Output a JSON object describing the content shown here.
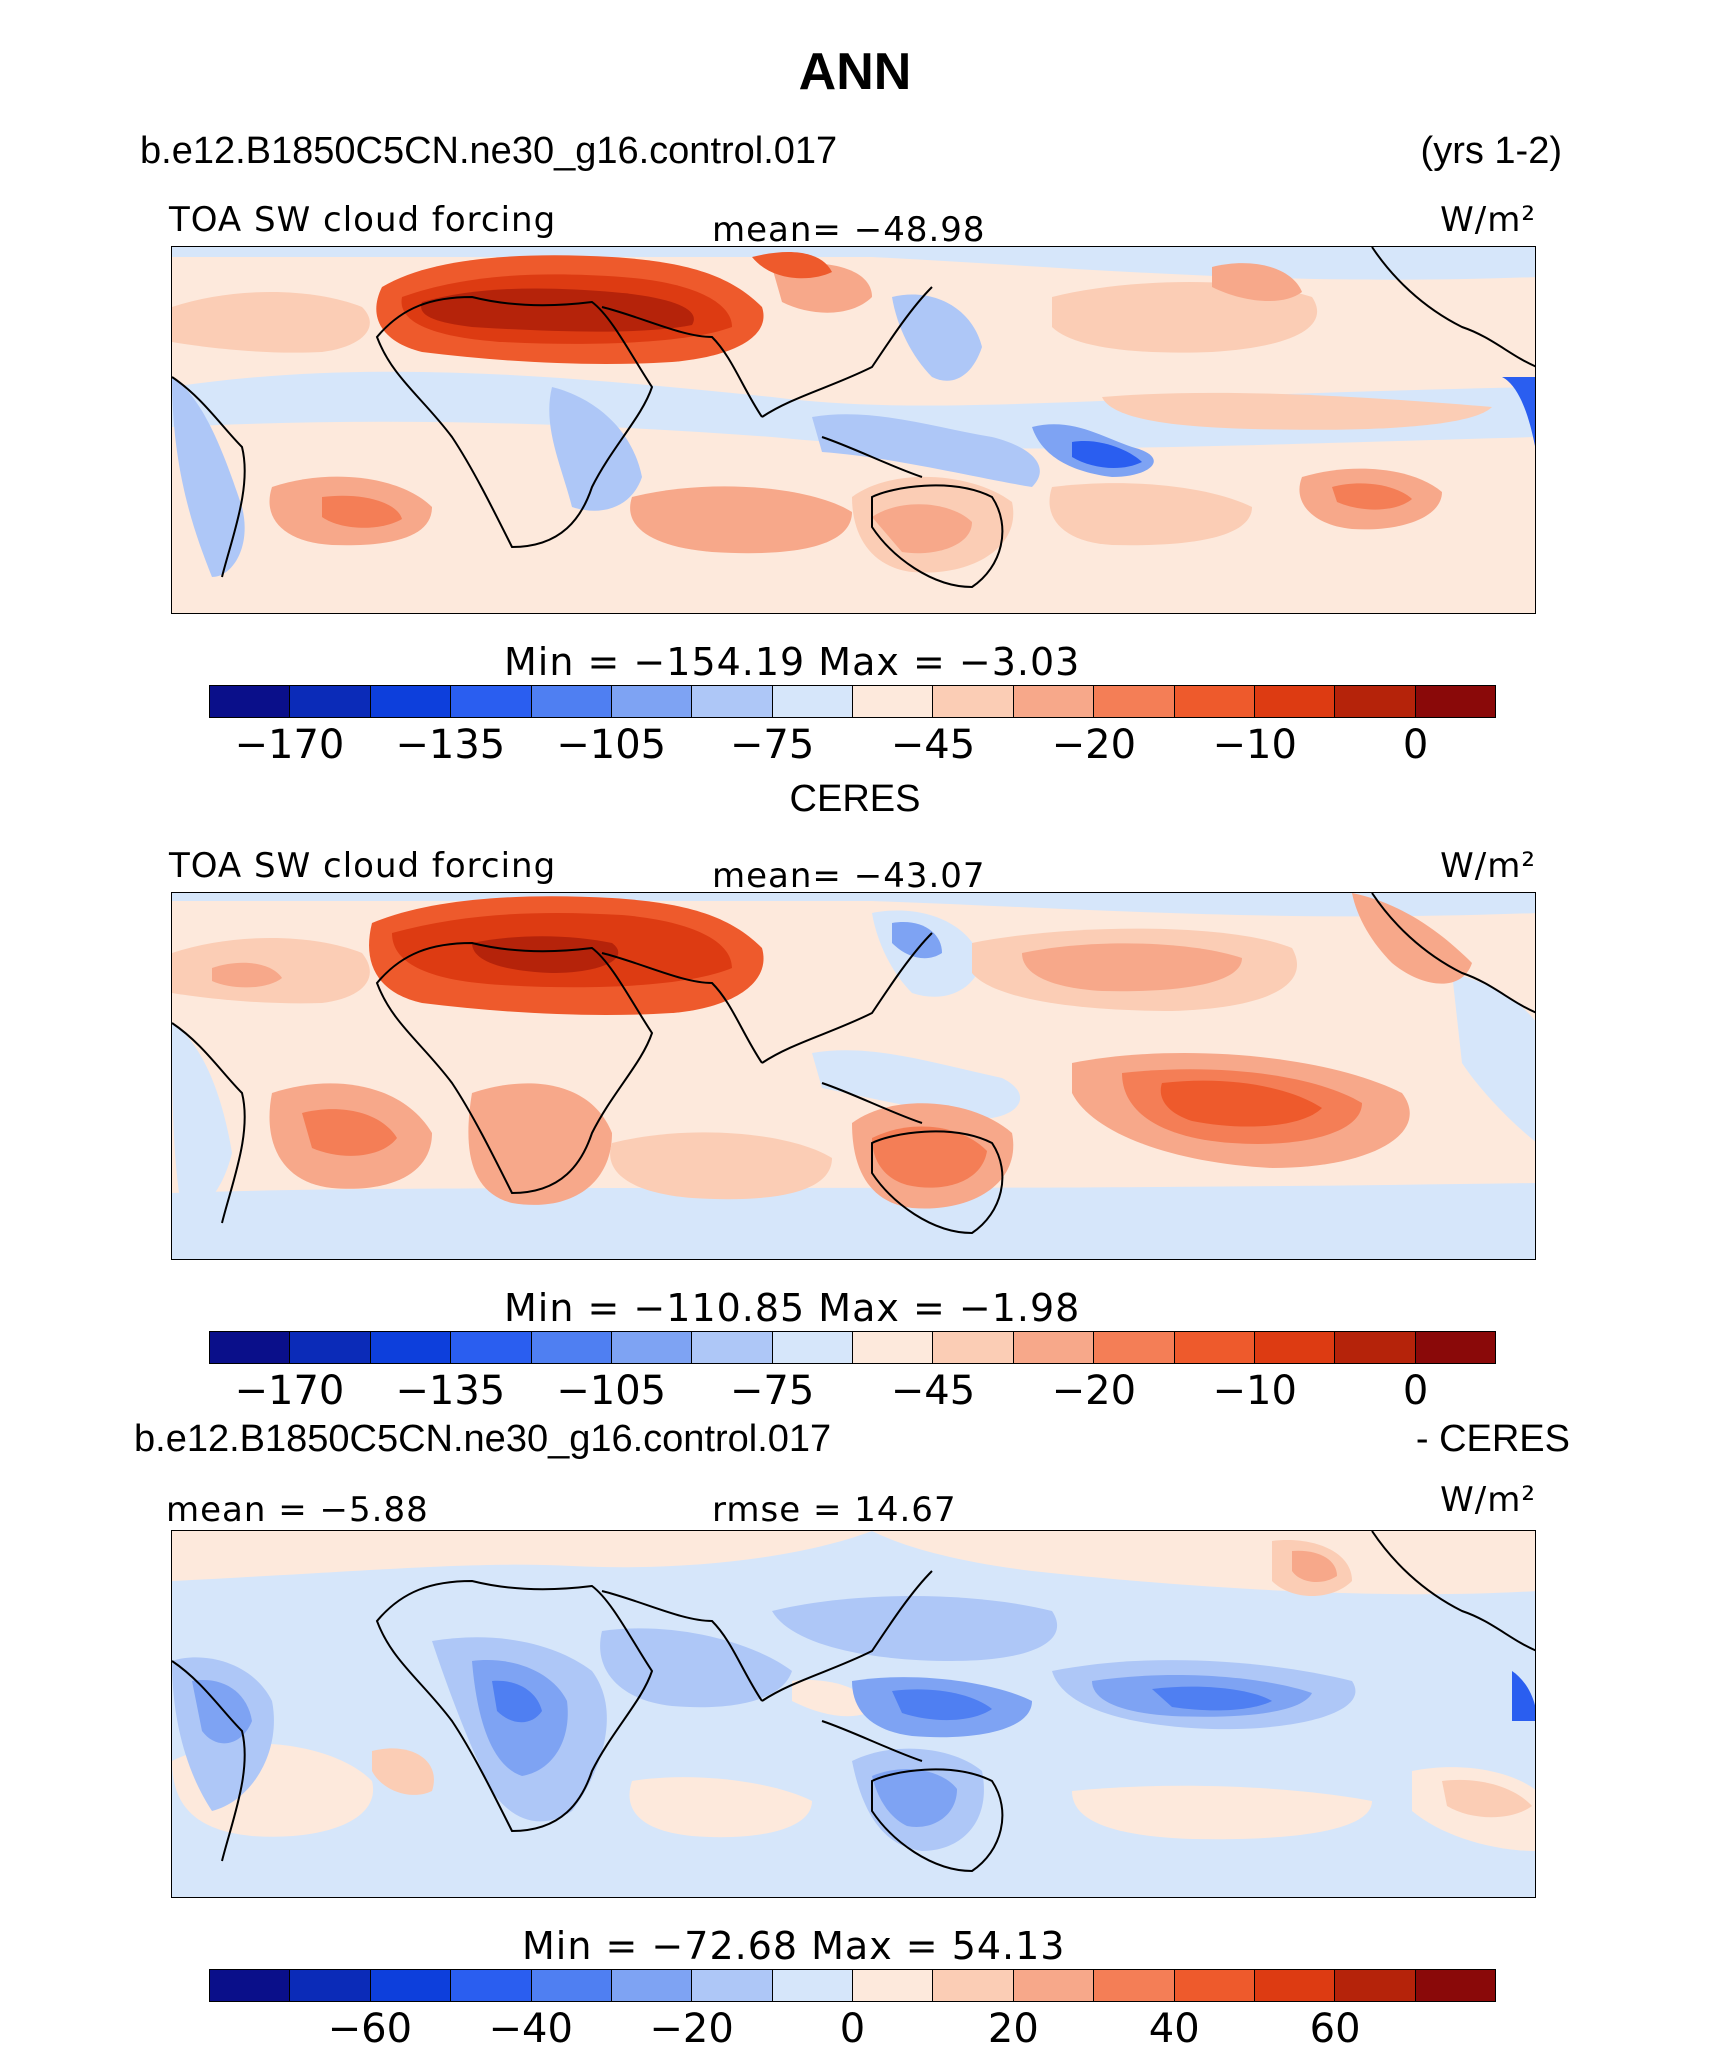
{
  "title": "ANN",
  "panels": [
    {
      "case": "b.e12.B1850C5CN.ne30_g16.control.017",
      "years": "(yrs 1-2)",
      "variable": "TOA SW cloud forcing",
      "stat_left": "",
      "stat_mid": "mean=  −48.98",
      "units": "W/m²",
      "minmax": "Min  =  −154.19  Max  =   −3.03",
      "palette": "abs",
      "ticks": [
        {
          "text": "−170",
          "at": 1
        },
        {
          "text": "−135",
          "at": 3
        },
        {
          "text": "−105",
          "at": 5
        },
        {
          "text": "−75",
          "at": 7
        },
        {
          "text": "−45",
          "at": 9
        },
        {
          "text": "−20",
          "at": 11
        },
        {
          "text": "−10",
          "at": 13
        },
        {
          "text": "0",
          "at": 15
        }
      ]
    },
    {
      "case": "CERES",
      "years": "",
      "variable": "TOA SW cloud forcing",
      "stat_left": "",
      "stat_mid": "mean=  −43.07",
      "units": "W/m²",
      "minmax": "Min  =  −110.85  Max  =   −1.98",
      "palette": "abs",
      "ticks": [
        {
          "text": "−170",
          "at": 1
        },
        {
          "text": "−135",
          "at": 3
        },
        {
          "text": "−105",
          "at": 5
        },
        {
          "text": "−75",
          "at": 7
        },
        {
          "text": "−45",
          "at": 9
        },
        {
          "text": "−20",
          "at": 11
        },
        {
          "text": "−10",
          "at": 13
        },
        {
          "text": "0",
          "at": 15
        }
      ]
    },
    {
      "case": "b.e12.B1850C5CN.ne30_g16.control.017",
      "years": "- CERES",
      "variable": "",
      "stat_left": "mean =   −5.88",
      "stat_mid": "rmse  =   14.67",
      "units": "W/m²",
      "minmax": "Min  =  −72.68  Max  =   54.13",
      "palette": "diff",
      "ticks": [
        {
          "text": "−60",
          "at": 2
        },
        {
          "text": "−40",
          "at": 4
        },
        {
          "text": "−20",
          "at": 6
        },
        {
          "text": "0",
          "at": 8
        },
        {
          "text": "20",
          "at": 10
        },
        {
          "text": "40",
          "at": 12
        },
        {
          "text": "60",
          "at": 14
        }
      ]
    }
  ],
  "colors": {
    "palette": [
      "#0a0f8a",
      "#0b2bb8",
      "#0d3fdc",
      "#2a5ef0",
      "#4f7ff2",
      "#7ea3f3",
      "#aec7f7",
      "#d6e6fa",
      "#fde9dc",
      "#fbcdb5",
      "#f7a88a",
      "#f47e56",
      "#ee5a2c",
      "#dd3b12",
      "#b5230a",
      "#8a0909"
    ]
  }
}
